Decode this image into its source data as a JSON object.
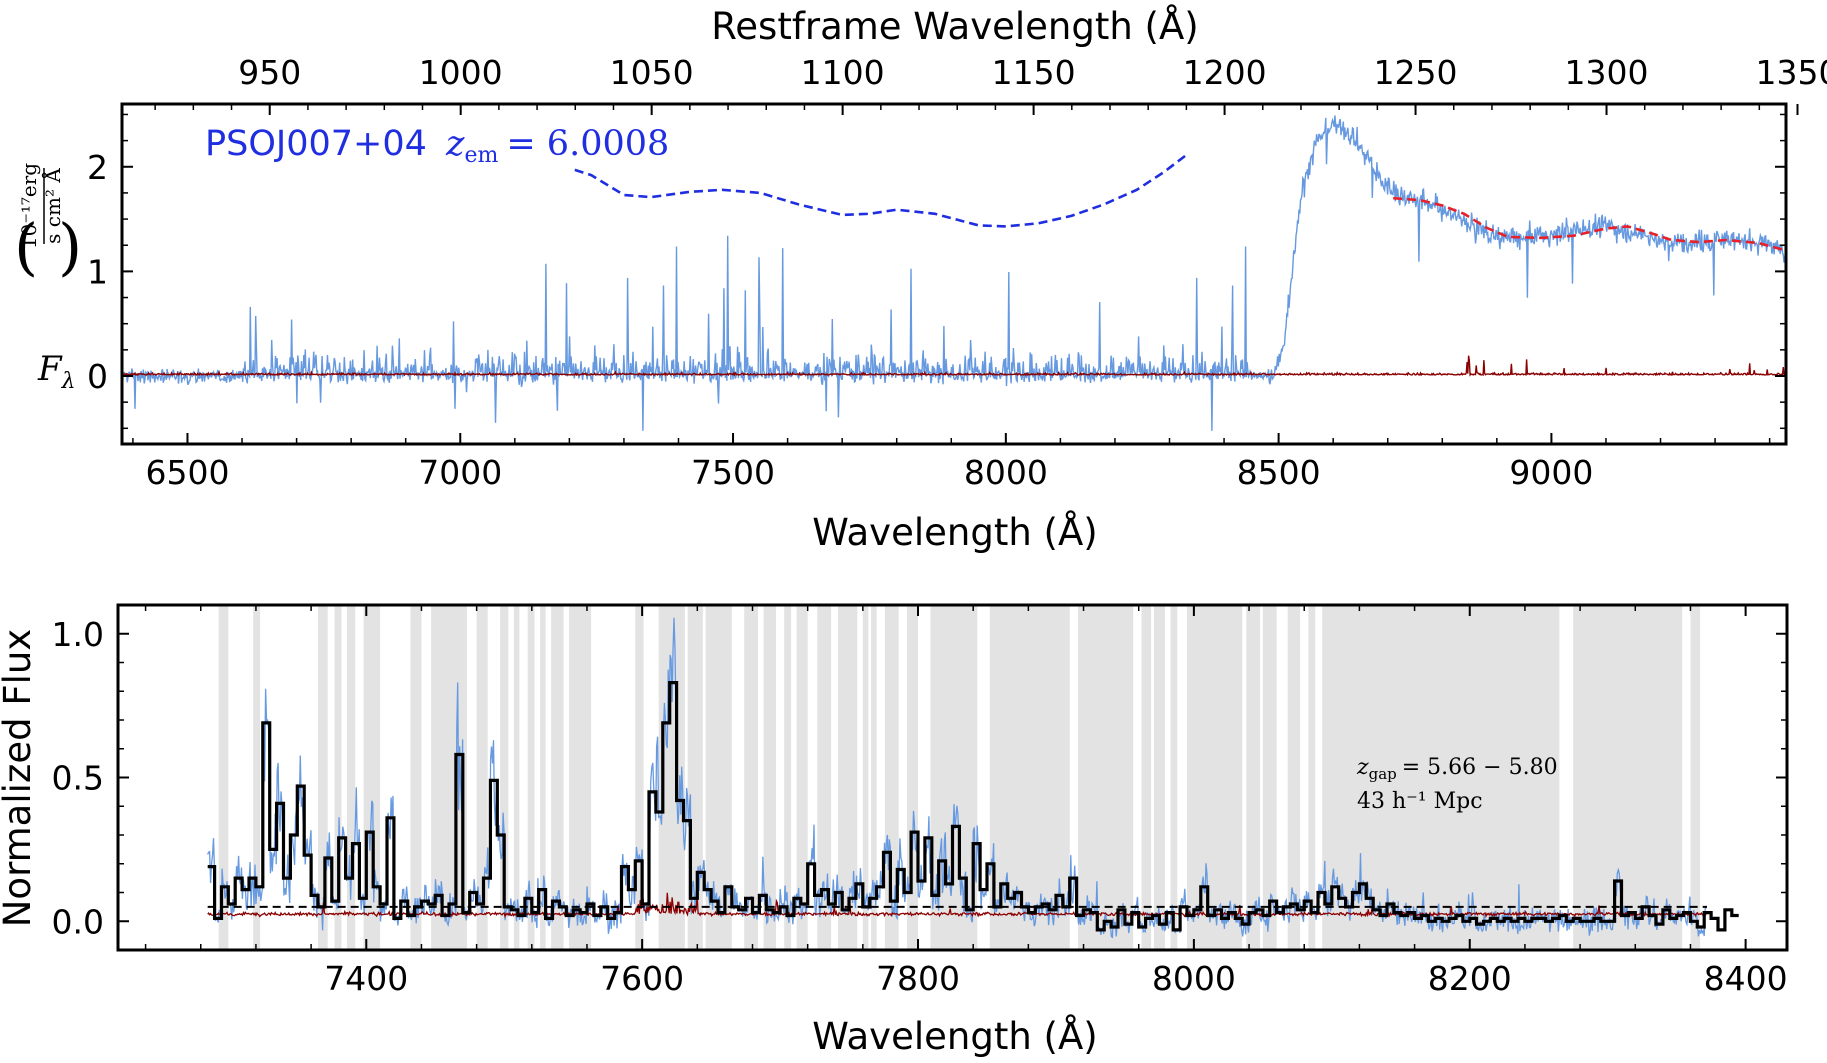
{
  "chart_data": [
    {
      "type": "line",
      "panel": "top",
      "xlabel": "Wavelength (Å)",
      "x2label": "Restframe Wavelength (Å)",
      "ylabel_symbol": "F",
      "ylabel_subscript": "λ",
      "ylabel_unit_numerator": "10⁻¹⁷erg",
      "ylabel_unit_denominator": "s cm² Å",
      "xlim": [
        6380,
        9430
      ],
      "ylim": [
        -0.65,
        2.6
      ],
      "x_ticks": [
        "6500",
        "7000",
        "7500",
        "8000",
        "8500",
        "9000"
      ],
      "y_ticks": [
        "0",
        "1",
        "2"
      ],
      "x2_ticks": [
        "950",
        "1000",
        "1050",
        "1100",
        "1150",
        "1200",
        "1250",
        "1300",
        "1350"
      ],
      "annotation_name": "PSOJ007+04",
      "annotation_z_symbol": "z",
      "annotation_z_sub": "em",
      "annotation_z_value": "= 6.0008",
      "redshift": 6.0008,
      "colors": {
        "flux": "#6699e0",
        "noise": "#8b0000",
        "continuum_fit": "#e8202a",
        "template": "#1f2ee0"
      },
      "series": [
        {
          "role": "continuum-template",
          "style": "dashed",
          "x": [
            7210,
            7240,
            7300,
            7350,
            7420,
            7480,
            7550,
            7620,
            7700,
            7750,
            7800,
            7870,
            7950,
            8000,
            8060,
            8120,
            8180,
            8240,
            8290,
            8330
          ],
          "y": [
            1.97,
            1.92,
            1.73,
            1.71,
            1.76,
            1.78,
            1.75,
            1.64,
            1.54,
            1.55,
            1.59,
            1.55,
            1.44,
            1.43,
            1.46,
            1.53,
            1.64,
            1.78,
            1.95,
            2.11
          ]
        },
        {
          "role": "continuum-fit",
          "style": "dashed",
          "x": [
            8710,
            8760,
            8800,
            8840,
            8880,
            8920,
            8980,
            9040,
            9100,
            9140,
            9180,
            9220,
            9270,
            9320,
            9380,
            9430
          ],
          "y": [
            1.7,
            1.68,
            1.63,
            1.55,
            1.42,
            1.33,
            1.32,
            1.34,
            1.41,
            1.43,
            1.37,
            1.3,
            1.28,
            1.3,
            1.27,
            1.2
          ]
        },
        {
          "role": "flux-envelope",
          "x": [
            6380,
            8490,
            8510,
            8540,
            8570,
            8600,
            8630,
            8660,
            8690,
            8720,
            8760,
            8800,
            8850,
            8900,
            8950,
            9000,
            9050,
            9100,
            9150,
            9200,
            9250,
            9300,
            9350,
            9400,
            9430
          ],
          "y": [
            0,
            0,
            0.3,
            1.7,
            2.25,
            2.4,
            2.35,
            2.1,
            1.85,
            1.75,
            1.68,
            1.6,
            1.45,
            1.33,
            1.32,
            1.35,
            1.42,
            1.44,
            1.38,
            1.3,
            1.28,
            1.31,
            1.3,
            1.27,
            1.22
          ]
        }
      ]
    },
    {
      "type": "line",
      "panel": "bottom",
      "xlabel": "Wavelength (Å)",
      "ylabel": "Normalized Flux",
      "xlim": [
        7220,
        8430
      ],
      "ylim": [
        -0.1,
        1.1
      ],
      "x_ticks": [
        "7400",
        "7600",
        "7800",
        "8000",
        "8200",
        "8400"
      ],
      "y_ticks": [
        "0.0",
        "0.5",
        "1.0"
      ],
      "data_range": [
        7285,
        8372
      ],
      "dashed_level": 0.05,
      "annotation_line1_prefix": "z",
      "annotation_line1_sub": "gap",
      "annotation_line1_value": "= 5.66 − 5.80",
      "annotation_line2": "43 h⁻¹ Mpc",
      "colors": {
        "flux": "#6699e0",
        "binned": "#000000",
        "noise": "#8b0000",
        "gap_shading": "#e3e3e3"
      },
      "shaded_regions": [
        [
          7293,
          7300
        ],
        [
          7318,
          7323
        ],
        [
          7365,
          7372
        ],
        [
          7377,
          7382
        ],
        [
          7386,
          7392
        ],
        [
          7398,
          7410
        ],
        [
          7432,
          7440
        ],
        [
          7447,
          7473
        ],
        [
          7480,
          7488
        ],
        [
          7497,
          7503
        ],
        [
          7507,
          7511
        ],
        [
          7517,
          7522
        ],
        [
          7526,
          7530
        ],
        [
          7534,
          7543
        ],
        [
          7547,
          7563
        ],
        [
          7595,
          7601
        ],
        [
          7612,
          7631
        ],
        [
          7633,
          7644
        ],
        [
          7646,
          7665
        ],
        [
          7674,
          7684
        ],
        [
          7688,
          7697
        ],
        [
          7703,
          7708
        ],
        [
          7712,
          7720
        ],
        [
          7727,
          7737
        ],
        [
          7742,
          7756
        ],
        [
          7760,
          7764
        ],
        [
          7766,
          7770
        ],
        [
          7776,
          7786
        ],
        [
          7792,
          7800
        ],
        [
          7809,
          7843
        ],
        [
          7852,
          7910
        ],
        [
          7916,
          7956
        ],
        [
          7962,
          7969
        ],
        [
          7971,
          7979
        ],
        [
          7983,
          7988
        ],
        [
          7995,
          8035
        ],
        [
          8038,
          8048
        ],
        [
          8050,
          8060
        ],
        [
          8068,
          8077
        ],
        [
          8083,
          8088
        ],
        [
          8093,
          8265
        ],
        [
          8275,
          8354
        ],
        [
          8360,
          8367
        ]
      ],
      "binned_flux": {
        "x_start": 7285,
        "bin_width": 5,
        "values": [
          0.19,
          0.01,
          0.12,
          0.06,
          0.15,
          0.11,
          0.15,
          0.12,
          0.69,
          0.25,
          0.41,
          0.15,
          0.3,
          0.47,
          0.23,
          0.09,
          0.05,
          0.22,
          0.07,
          0.29,
          0.15,
          0.27,
          0.08,
          0.31,
          0.12,
          0.06,
          0.36,
          0.01,
          0.07,
          0.02,
          0.05,
          0.07,
          0.06,
          0.09,
          0.02,
          0.06,
          0.58,
          0.03,
          0.1,
          0.06,
          0.15,
          0.49,
          0.3,
          0.05,
          0.04,
          0.02,
          0.08,
          0.03,
          0.11,
          0.01,
          0.07,
          0.05,
          0.02,
          0.04,
          0.03,
          0.06,
          0.02,
          0.05,
          0.01,
          0.03,
          0.19,
          0.11,
          0.21,
          0.06,
          0.45,
          0.38,
          0.69,
          0.83,
          0.42,
          0.35,
          0.08,
          0.17,
          0.11,
          0.07,
          0.03,
          0.12,
          0.05,
          0.04,
          0.08,
          0.03,
          0.09,
          0.04,
          0.03,
          0.05,
          0.02,
          0.08,
          0.06,
          0.2,
          0.09,
          0.11,
          0.06,
          0.1,
          0.04,
          0.08,
          0.13,
          0.05,
          0.08,
          0.12,
          0.24,
          0.07,
          0.18,
          0.1,
          0.31,
          0.14,
          0.29,
          0.09,
          0.21,
          0.13,
          0.33,
          0.15,
          0.04,
          0.27,
          0.11,
          0.2,
          0.05,
          0.13,
          0.08,
          0.1,
          0.05,
          0.03,
          0.05,
          0.06,
          0.04,
          0.09,
          0.05,
          0.15,
          0.02,
          0.04,
          0.03,
          -0.03,
          0.0,
          -0.02,
          0.04,
          -0.01,
          0.03,
          -0.02,
          0.01,
          0.02,
          -0.01,
          0.03,
          -0.03,
          0.05,
          0.02,
          0.04,
          0.12,
          0.02,
          0.04,
          0.01,
          0.03,
          0.01,
          -0.01,
          0.03,
          0.04,
          0.02,
          0.07,
          0.03,
          0.05,
          0.06,
          0.04,
          0.07,
          0.03,
          0.1,
          0.06,
          0.12,
          0.08,
          0.05,
          0.1,
          0.13,
          0.08,
          0.04,
          0.02,
          0.06,
          0.03,
          0.02,
          0.03,
          0.01,
          0.02,
          0.0,
          0.01,
          0.0,
          0.01,
          0.02,
          0.0,
          0.01,
          -0.01,
          0.0,
          0.01,
          0.0,
          0.01,
          0.0,
          0.01,
          0.0,
          0.01,
          0.01,
          0.0,
          0.01,
          0.02,
          0.0,
          0.01,
          0.0,
          0.0,
          0.01,
          0.0,
          0.0,
          0.14,
          0.02,
          0.03,
          0.01,
          0.05,
          0.02,
          -0.01,
          0.04,
          0.01,
          0.02,
          0.03,
          0.0,
          -0.02,
          0.03,
          0.01,
          -0.03,
          0.04,
          0.02
        ]
      }
    }
  ]
}
